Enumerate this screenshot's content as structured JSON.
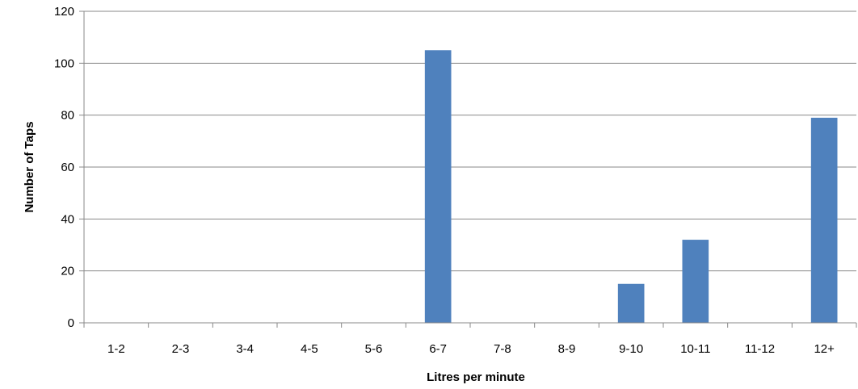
{
  "chart_data": {
    "type": "bar",
    "title": "",
    "xlabel": "Litres per minute",
    "ylabel": "Number of Taps",
    "categories": [
      "1-2",
      "2-3",
      "3-4",
      "4-5",
      "5-6",
      "6-7",
      "7-8",
      "8-9",
      "9-10",
      "10-11",
      "11-12",
      "12+"
    ],
    "values": [
      0,
      0,
      0,
      0,
      0,
      105,
      0,
      0,
      15,
      32,
      0,
      79
    ],
    "ylim": [
      0,
      120
    ],
    "yticks": [
      "0",
      "20",
      "40",
      "60",
      "80",
      "100",
      "120"
    ],
    "grid": "horizontal",
    "legend": "none",
    "bar_color": "#4f81bd",
    "grid_color": "#888888",
    "axis_color": "#888888"
  }
}
